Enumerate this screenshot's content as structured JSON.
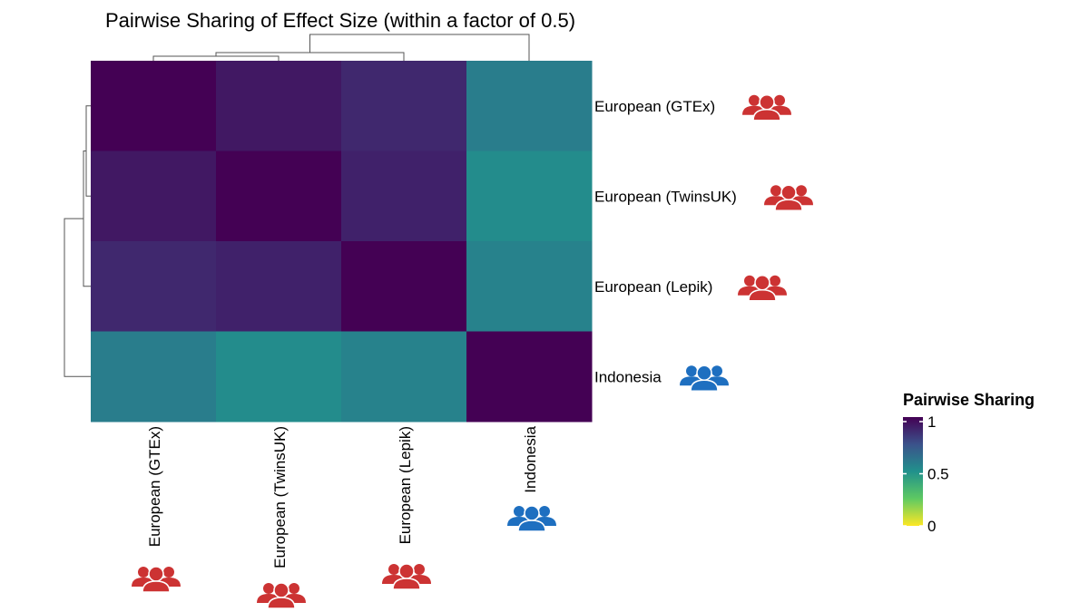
{
  "chart_data": {
    "type": "heatmap",
    "title": "Pairwise Sharing of Effect Size (within a factor of 0.5)",
    "rows": [
      "European (GTEx)",
      "European (TwinsUK)",
      "European (Lepik)",
      "Indonesia"
    ],
    "columns": [
      "European (GTEx)",
      "European (TwinsUK)",
      "European (Lepik)",
      "Indonesia"
    ],
    "row_groups": [
      "european",
      "european",
      "european",
      "indonesian"
    ],
    "column_groups": [
      "european",
      "european",
      "european",
      "indonesian"
    ],
    "values": [
      [
        1.0,
        0.93,
        0.88,
        0.58
      ],
      [
        0.93,
        1.0,
        0.9,
        0.52
      ],
      [
        0.88,
        0.9,
        1.0,
        0.56
      ],
      [
        0.58,
        0.52,
        0.56,
        1.0
      ]
    ],
    "legend": {
      "title": "Pairwise Sharing",
      "ticks": [
        1,
        0.5,
        0
      ],
      "range": [
        0,
        1
      ],
      "colormap": "viridis",
      "placement": "right"
    },
    "dendrogram": {
      "rows": true,
      "columns": true
    }
  },
  "group_colors": {
    "european": "#cc3333",
    "indonesian": "#1e6fc0"
  },
  "icon": "people-group-icon"
}
